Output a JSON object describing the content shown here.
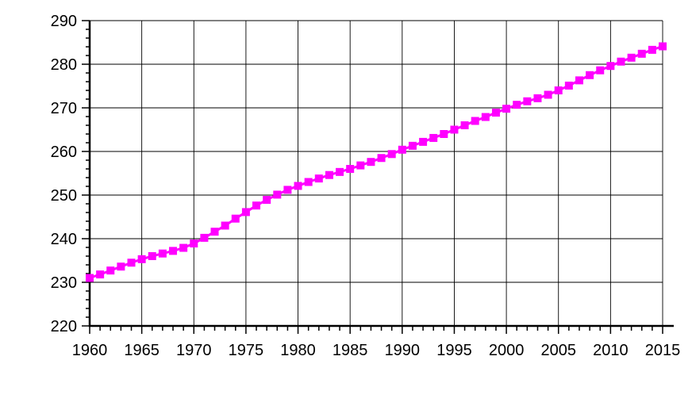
{
  "chart_data": {
    "type": "line",
    "title": "",
    "xlabel": "",
    "ylabel": "",
    "xlim": [
      1960,
      2015
    ],
    "ylim": [
      220,
      290
    ],
    "x_ticks": [
      1960,
      1965,
      1970,
      1975,
      1980,
      1985,
      1990,
      1995,
      2000,
      2005,
      2010,
      2015
    ],
    "y_ticks": [
      220,
      230,
      240,
      250,
      260,
      270,
      280,
      290
    ],
    "x_tick_labels": [
      "1960",
      "1965",
      "1970",
      "1975",
      "1980",
      "1985",
      "1990",
      "1995",
      "2000",
      "2005",
      "2010",
      "2015"
    ],
    "y_tick_labels": [
      "220",
      "230",
      "240",
      "250",
      "260",
      "270",
      "280",
      "290"
    ],
    "grid": true,
    "colors": {
      "series": "#ff00ff",
      "grid": "#000000",
      "axis": "#000000"
    },
    "series": [
      {
        "marker": "square",
        "x": [
          1960,
          1961,
          1962,
          1963,
          1964,
          1965,
          1966,
          1967,
          1968,
          1969,
          1970,
          1971,
          1972,
          1973,
          1974,
          1975,
          1976,
          1977,
          1978,
          1979,
          1980,
          1981,
          1982,
          1983,
          1984,
          1985,
          1986,
          1987,
          1988,
          1989,
          1990,
          1991,
          1992,
          1993,
          1994,
          1995,
          1996,
          1997,
          1998,
          1999,
          2000,
          2001,
          2002,
          2003,
          2004,
          2005,
          2006,
          2007,
          2008,
          2009,
          2010,
          2011,
          2012,
          2013,
          2014,
          2015
        ],
        "values": [
          231.0,
          231.8,
          232.7,
          233.6,
          234.5,
          235.3,
          236.0,
          236.6,
          237.2,
          237.9,
          238.9,
          240.2,
          241.6,
          243.0,
          244.6,
          246.1,
          247.6,
          248.9,
          250.1,
          251.2,
          252.1,
          253.0,
          253.8,
          254.6,
          255.3,
          256.0,
          256.8,
          257.6,
          258.5,
          259.4,
          260.4,
          261.3,
          262.2,
          263.1,
          264.0,
          265.0,
          266.0,
          267.0,
          267.9,
          268.9,
          269.8,
          270.7,
          271.5,
          272.2,
          273.0,
          274.0,
          275.1,
          276.3,
          277.5,
          278.6,
          279.6,
          280.6,
          281.5,
          282.4,
          283.3,
          284.1
        ]
      }
    ]
  }
}
